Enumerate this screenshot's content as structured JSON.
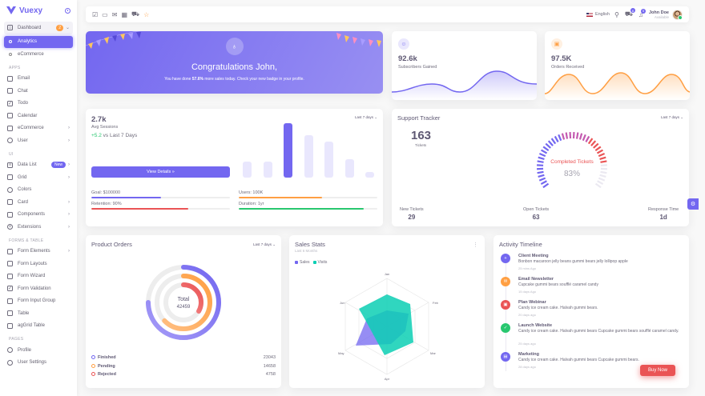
{
  "sidebar": {
    "brand": "Vuexy",
    "dashboard": {
      "label": "Dashboard",
      "badge": "2"
    },
    "sub": [
      "Analytics",
      "eCommerce"
    ],
    "sections": {
      "apps": "APPS",
      "ui": "UI",
      "forms": "FORMS & TABLE",
      "pages": "PAGES"
    },
    "apps": [
      "Email",
      "Chat",
      "Todo",
      "Calendar",
      "eCommerce",
      "User"
    ],
    "ui": [
      "Data List",
      "Grid",
      "Colors",
      "Card",
      "Components",
      "Extensions"
    ],
    "datalist_badge": "New",
    "forms": [
      "Form Elements",
      "Form Layouts",
      "Form Wizard",
      "Form Validation",
      "Form Input Group",
      "Table",
      "agGrid Table"
    ],
    "pages": [
      "Profile",
      "User Settings"
    ]
  },
  "navbar": {
    "language": "English",
    "cart_count": "6",
    "bell_count": "5",
    "user_name": "John Doe",
    "user_status": "Available"
  },
  "congrats": {
    "title": "Congratulations John,",
    "text_pre": "You have done ",
    "highlight": "57.6%",
    "text_post": " more sales today. Check your new badge in your profile."
  },
  "subscribers": {
    "value": "92.6k",
    "label": "Subscribers Gained"
  },
  "orders": {
    "value": "97.5K",
    "label": "Orders Received"
  },
  "sessions": {
    "value": "2.7k",
    "label": "Avg Sessions",
    "delta": "+5.2",
    "delta_text": " vs Last 7 Days",
    "dropdown": "Last 7 days",
    "button": "View Details",
    "bars": [
      0.3,
      0.3,
      1.0,
      0.78,
      0.66,
      0.34,
      0.11
    ],
    "goals": [
      {
        "label": "Goal: $100000",
        "pct": 0.5,
        "color": "#7367f0"
      },
      {
        "label": "Users: 100K",
        "pct": 0.6,
        "color": "#ff9f43"
      },
      {
        "label": "Retention: 90%",
        "pct": 0.7,
        "color": "#ea5455"
      },
      {
        "label": "Duration: 1yr",
        "pct": 0.9,
        "color": "#28c76f"
      }
    ]
  },
  "support": {
    "title": "Support Tracker",
    "dropdown": "Last 7 days",
    "count": "163",
    "count_label": "Tickets",
    "gauge_label": "Completed Tickets",
    "gauge_value": "83%",
    "gauge_pct": 0.83,
    "footer": [
      {
        "label": "New Tickets",
        "value": "29"
      },
      {
        "label": "Open Tickets",
        "value": "63"
      },
      {
        "label": "Response Time",
        "value": "1d"
      }
    ]
  },
  "product_orders": {
    "title": "Product Orders",
    "dropdown": "Last 7 days",
    "total_label": "Total",
    "total": "42459",
    "items": [
      {
        "name": "Finished",
        "value": "23043",
        "color": "#7367f0"
      },
      {
        "name": "Pending",
        "value": "14658",
        "color": "#ff9f43"
      },
      {
        "name": "Rejected",
        "value": "4758",
        "color": "#ea5455"
      }
    ]
  },
  "sales_stats": {
    "title": "Sales Stats",
    "subtitle": "Last 6 Months",
    "legend": [
      "Sales",
      "Visits"
    ],
    "axes": [
      "Jan",
      "Feb",
      "Mar",
      "Apr",
      "May",
      "Jun"
    ]
  },
  "timeline": {
    "title": "Activity Timeline",
    "items": [
      {
        "title": "Client Meeting",
        "desc": "Bonbon macaroon jelly beans gummi bears jelly lollipop apple",
        "time": "25 mins Ago",
        "color": "#7367f0",
        "icon": "+"
      },
      {
        "title": "Email Newsletter",
        "desc": "Cupcake gummi bears soufflé caramel candy",
        "time": "15 days Ago",
        "color": "#ff9f43",
        "icon": "✉"
      },
      {
        "title": "Plan Webinar",
        "desc": "Candy ice cream cake. Halvah gummi bears.",
        "time": "20 days ago",
        "color": "#ea5455",
        "icon": "▣"
      },
      {
        "title": "Launch Website",
        "desc": "Candy ice cream cake. Halvah gummi bears Cupcake gummi bears soufflé caramel candy.",
        "time": "25 days ago",
        "color": "#28c76f",
        "icon": "✓"
      },
      {
        "title": "Marketing",
        "desc": "Candy ice cream cake. Halvah gummi bears Cupcake gummi bears.",
        "time": "28 days ago",
        "color": "#7367f0",
        "icon": "▤"
      }
    ]
  },
  "buy_now": "Buy Now"
}
